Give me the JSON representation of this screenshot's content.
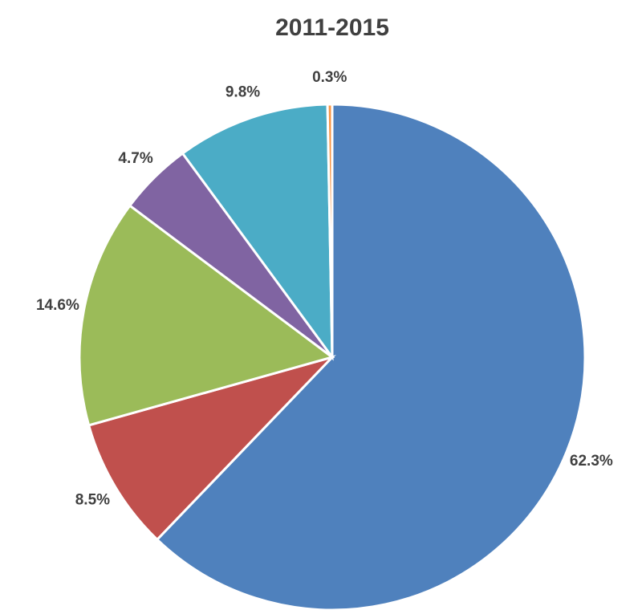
{
  "chart_data": {
    "type": "pie",
    "title": "2011-2015",
    "values": [
      62.3,
      8.5,
      14.6,
      4.7,
      9.8,
      0.3
    ],
    "value_labels": [
      "62.3%",
      "8.5%",
      "14.6%",
      "4.7%",
      "9.8%",
      "0.3%"
    ],
    "colors": [
      "#4f81bd",
      "#c0504d",
      "#9bbb59",
      "#8064a2",
      "#4bacc6",
      "#f79646"
    ]
  }
}
